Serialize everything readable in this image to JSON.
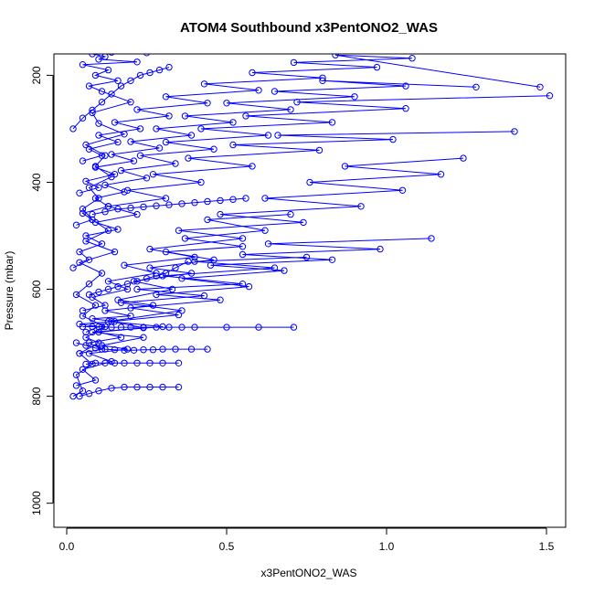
{
  "chart_data": {
    "type": "line",
    "title": "ATOM4 Southbound x3PentONO2_WAS",
    "xlabel": "x3PentONO2_WAS",
    "ylabel": "Pressure (mbar)",
    "xlim": [
      -0.04,
      1.56
    ],
    "ylim": [
      1045,
      160
    ],
    "y_reversed": true,
    "x_ticks": [
      0.0,
      0.5,
      1.0,
      1.5
    ],
    "x_tick_labels": [
      "0.0",
      "0.5",
      "1.0",
      "1.5"
    ],
    "y_ticks": [
      200,
      400,
      600,
      800,
      1000
    ],
    "y_tick_labels": [
      "200",
      "400",
      "600",
      "800",
      "1000"
    ],
    "grid": false,
    "legend": "none",
    "series_color": "#0000ff",
    "series": [
      {
        "x": [
          0.02,
          0.05,
          0.03,
          0.08,
          0.04,
          0.1,
          0.06,
          0.12,
          0.05,
          0.09,
          0.03,
          0.07,
          0.11,
          0.04,
          0.15,
          0.06,
          0.13,
          0.08,
          0.05,
          0.1,
          0.07,
          0.14,
          0.09,
          0.12,
          0.06,
          0.18,
          0.1,
          0.08,
          0.2,
          0.11,
          0.07,
          0.16,
          0.09,
          0.13,
          0.05,
          0.22,
          0.1,
          0.12,
          0.08,
          0.25,
          0.14,
          0.1
        ],
        "y": [
          800,
          790,
          760,
          740,
          720,
          700,
          690,
          670,
          650,
          630,
          610,
          590,
          570,
          550,
          530,
          510,
          490,
          470,
          450,
          430,
          410,
          390,
          370,
          350,
          330,
          310,
          290,
          270,
          250,
          230,
          220,
          210,
          200,
          190,
          180,
          175,
          170,
          165,
          160,
          158,
          157,
          155
        ]
      },
      {
        "x": [
          0.03,
          0.09,
          0.05,
          0.14,
          0.07,
          0.19,
          0.11,
          0.24,
          0.08,
          0.3,
          0.13,
          0.36,
          0.17,
          0.43,
          0.22,
          0.55,
          0.3,
          0.65,
          0.4,
          0.75
        ],
        "y": [
          780,
          770,
          750,
          735,
          720,
          712,
          705,
          690,
          680,
          670,
          660,
          640,
          625,
          612,
          600,
          590,
          575,
          560,
          548,
          540
        ]
      },
      {
        "x": [
          0.06,
          0.1,
          0.04,
          0.15,
          0.08,
          0.2,
          0.12,
          0.27,
          0.16,
          0.33,
          0.21,
          0.39,
          0.26,
          0.46,
          0.31,
          0.55,
          0.37,
          0.62,
          0.44,
          0.7
        ],
        "y": [
          680,
          670,
          665,
          660,
          655,
          650,
          640,
          630,
          620,
          600,
          585,
          570,
          560,
          545,
          530,
          520,
          505,
          490,
          470,
          460
        ]
      },
      {
        "x": [
          0.04,
          0.11,
          0.07,
          0.17,
          0.1,
          0.24,
          0.14,
          0.35,
          0.2,
          0.48,
          0.28,
          0.57,
          0.36,
          0.68,
          0.45,
          0.83,
          0.55,
          0.98,
          0.63,
          1.14
        ],
        "y": [
          720,
          712,
          700,
          690,
          680,
          672,
          660,
          648,
          635,
          620,
          610,
          595,
          580,
          565,
          555,
          545,
          535,
          525,
          515,
          505
        ]
      },
      {
        "x": [
          0.05,
          0.12,
          0.08,
          0.19,
          0.13,
          0.28,
          0.18,
          0.4,
          0.26,
          0.55,
          0.35,
          0.74,
          0.48,
          0.92,
          0.62,
          1.05,
          0.76,
          1.17,
          0.87,
          1.24
        ],
        "y": [
          640,
          630,
          615,
          600,
          585,
          570,
          555,
          540,
          525,
          505,
          490,
          475,
          460,
          445,
          430,
          415,
          400,
          385,
          370,
          355
        ]
      },
      {
        "x": [
          0.02,
          0.07,
          0.04,
          0.11,
          0.06,
          0.16,
          0.09,
          0.22,
          0.13,
          0.31,
          0.19,
          0.42,
          0.27,
          0.58,
          0.38,
          0.79,
          0.52,
          1.02,
          0.66,
          1.4
        ],
        "y": [
          560,
          545,
          530,
          515,
          500,
          488,
          475,
          460,
          445,
          430,
          415,
          400,
          385,
          370,
          355,
          340,
          330,
          320,
          312,
          305
        ]
      },
      {
        "x": [
          0.03,
          0.08,
          0.05,
          0.13,
          0.09,
          0.18,
          0.12,
          0.25,
          0.17,
          0.34,
          0.23,
          0.46,
          0.31,
          0.63,
          0.42,
          0.83,
          0.56,
          1.06,
          0.72,
          1.51
        ],
        "y": [
          480,
          470,
          458,
          445,
          430,
          418,
          405,
          392,
          378,
          365,
          350,
          338,
          325,
          312,
          300,
          288,
          276,
          262,
          250,
          238
        ]
      },
      {
        "x": [
          0.04,
          0.1,
          0.06,
          0.15,
          0.09,
          0.21,
          0.14,
          0.29,
          0.2,
          0.39,
          0.28,
          0.52,
          0.37,
          0.7,
          0.5,
          0.9,
          0.65,
          1.06,
          0.8,
          1.28
        ],
        "y": [
          420,
          410,
          398,
          385,
          372,
          360,
          348,
          336,
          324,
          312,
          300,
          288,
          276,
          264,
          252,
          240,
          230,
          220,
          210,
          222
        ]
      },
      {
        "x": [
          0.05,
          0.11,
          0.07,
          0.16,
          0.1,
          0.23,
          0.15,
          0.32,
          0.22,
          0.44,
          0.31,
          0.6,
          0.43,
          0.8,
          0.58,
          0.97,
          0.71,
          1.08,
          0.84,
          1.48
        ],
        "y": [
          360,
          350,
          338,
          325,
          312,
          300,
          288,
          276,
          264,
          252,
          240,
          228,
          216,
          205,
          195,
          185,
          176,
          168,
          162,
          222
        ]
      },
      {
        "x": [
          0.03,
          0.06,
          0.09,
          0.12,
          0.15,
          0.18,
          0.21,
          0.24,
          0.27,
          0.3,
          0.34,
          0.39,
          0.44
        ],
        "y": [
          700,
          705,
          710,
          712,
          713,
          714,
          714,
          713,
          713,
          712,
          712,
          712,
          712
        ]
      },
      {
        "x": [
          0.05,
          0.08,
          0.11,
          0.14,
          0.17,
          0.2,
          0.24,
          0.28,
          0.32,
          0.36,
          0.4,
          0.5,
          0.6,
          0.71
        ],
        "y": [
          670,
          670,
          670,
          671,
          671,
          671,
          671,
          671,
          671,
          671,
          671,
          671,
          671,
          671
        ]
      },
      {
        "x": [
          0.06,
          0.09,
          0.12,
          0.15,
          0.18,
          0.22,
          0.26,
          0.3,
          0.35
        ],
        "y": [
          740,
          738,
          738,
          738,
          738,
          738,
          738,
          738,
          738
        ]
      },
      {
        "x": [
          0.04,
          0.07,
          0.1,
          0.14,
          0.18,
          0.22,
          0.26,
          0.3,
          0.35
        ],
        "y": [
          800,
          795,
          790,
          785,
          783,
          783,
          783,
          783,
          783
        ]
      },
      {
        "x": [
          0.07,
          0.1,
          0.13,
          0.16,
          0.19,
          0.22,
          0.25,
          0.28,
          0.31,
          0.34,
          0.38
        ],
        "y": [
          610,
          605,
          600,
          595,
          590,
          585,
          580,
          575,
          570,
          560,
          548
        ]
      },
      {
        "x": [
          0.02,
          0.05,
          0.08,
          0.11,
          0.14,
          0.17,
          0.2,
          0.23,
          0.26,
          0.29,
          0.32
        ],
        "y": [
          300,
          280,
          265,
          250,
          235,
          220,
          210,
          200,
          195,
          190,
          185
        ]
      },
      {
        "x": [
          0.08,
          0.12,
          0.16,
          0.2,
          0.24,
          0.28,
          0.32,
          0.36,
          0.4,
          0.44,
          0.48,
          0.52,
          0.56
        ],
        "y": [
          460,
          455,
          450,
          448,
          446,
          444,
          442,
          440,
          438,
          436,
          434,
          432,
          430
        ]
      }
    ]
  }
}
